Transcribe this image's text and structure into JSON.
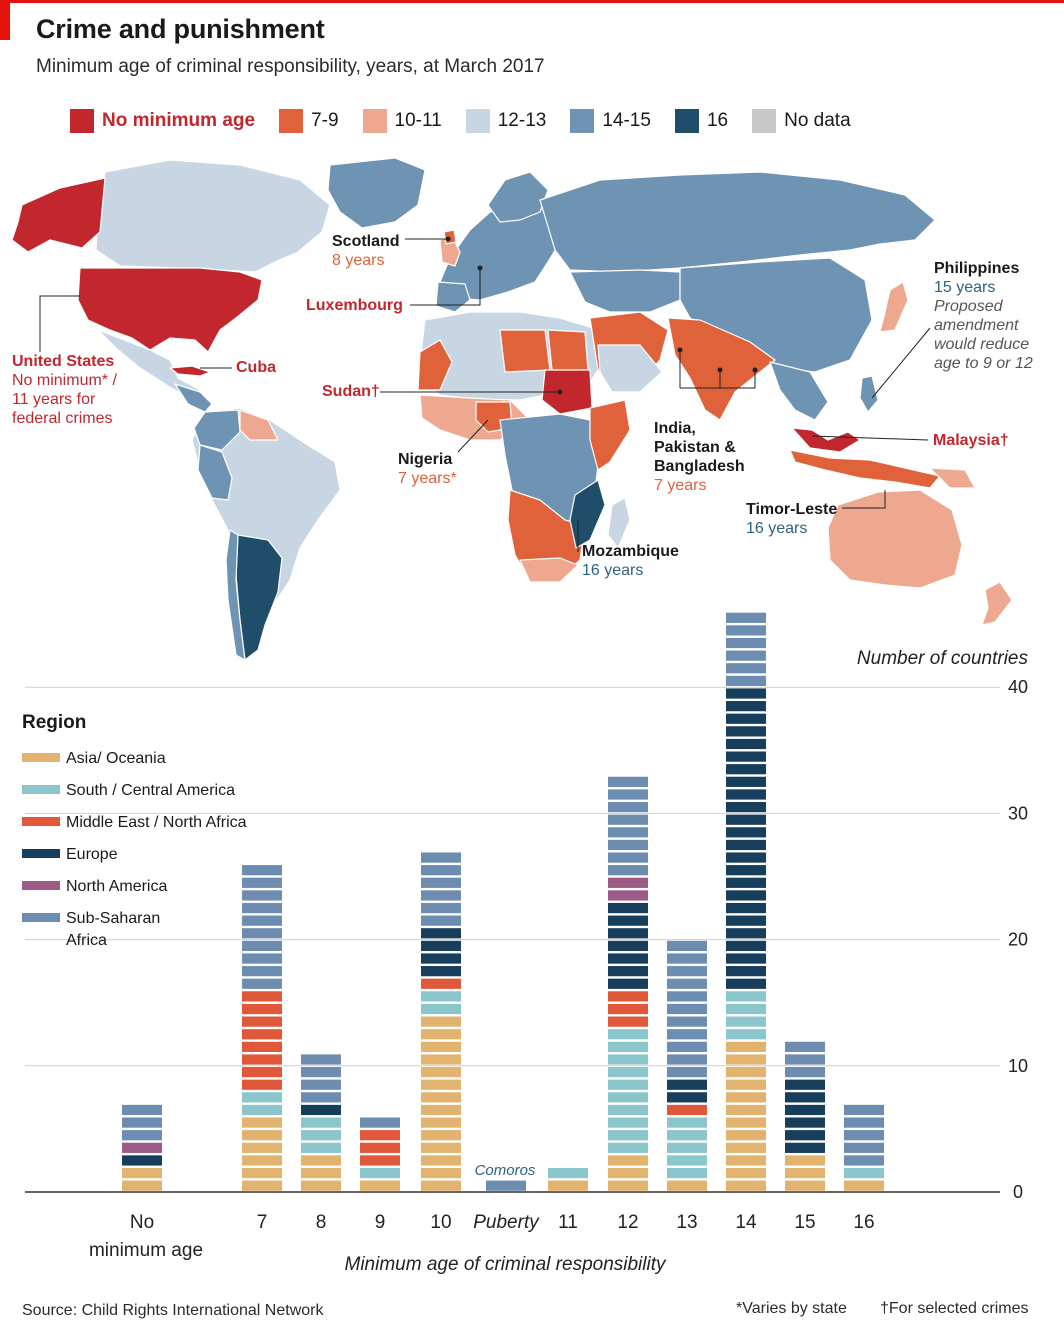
{
  "header": {
    "title": "Crime and punishment",
    "subtitle": "Minimum age of criminal responsibility, years, at March 2017"
  },
  "map_legend": [
    {
      "label": "No minimum age",
      "color": "#c1272d"
    },
    {
      "label": "7-9",
      "color": "#e0623a"
    },
    {
      "label": "10-11",
      "color": "#eda88f"
    },
    {
      "label": "12-13",
      "color": "#c8d6e4"
    },
    {
      "label": "14-15",
      "color": "#6f93b2"
    },
    {
      "label": "16",
      "color": "#1f4d6a"
    },
    {
      "label": "No data",
      "color": "#c8c8c8"
    }
  ],
  "map_annotations": {
    "scotland": {
      "name": "Scotland",
      "value": "8 years"
    },
    "luxembourg": {
      "name": "Luxembourg"
    },
    "united_states": {
      "name": "United States",
      "value": "No minimum* / 11 years for federal crimes"
    },
    "cuba": {
      "name": "Cuba"
    },
    "sudan": {
      "name": "Sudan†"
    },
    "nigeria": {
      "name": "Nigeria",
      "value": "7 years*"
    },
    "india": {
      "name": "India, Pakistan & Bangladesh",
      "value": "7 years"
    },
    "philippines": {
      "name": "Philippines",
      "value": "15 years",
      "note": "Proposed amendment would reduce age to 9 or 12"
    },
    "malaysia": {
      "name": "Malaysia†"
    },
    "timor_leste": {
      "name": "Timor-Leste",
      "value": "16 years"
    },
    "mozambique": {
      "name": "Mozambique",
      "value": "16 years"
    }
  },
  "region_legend": {
    "title": "Region",
    "items": [
      {
        "key": "asia",
        "label": "Asia/ Oceania",
        "color": "#e1b36e"
      },
      {
        "key": "scam",
        "label": "South / Central America",
        "color": "#8cc6cd"
      },
      {
        "key": "mena",
        "label": "Middle East / North Africa",
        "color": "#e0583a"
      },
      {
        "key": "europe",
        "label": "Europe",
        "color": "#173f5c"
      },
      {
        "key": "na",
        "label": "North America",
        "color": "#9c5a86"
      },
      {
        "key": "ssa",
        "label": "Sub-Saharan Africa",
        "color": "#6c8daf"
      }
    ]
  },
  "chart_data": {
    "type": "bar",
    "stacked": true,
    "categories": [
      "No minimum age",
      "7",
      "8",
      "9",
      "10",
      "Puberty",
      "11",
      "12",
      "13",
      "14",
      "15",
      "16"
    ],
    "series": [
      {
        "name": "Asia/ Oceania",
        "values": [
          2,
          6,
          3,
          1,
          14,
          0,
          1,
          3,
          1,
          12,
          3,
          1
        ]
      },
      {
        "name": "South / Central America",
        "values": [
          0,
          2,
          3,
          1,
          2,
          0,
          1,
          10,
          5,
          4,
          0,
          1
        ]
      },
      {
        "name": "Middle East / North Africa",
        "values": [
          0,
          8,
          0,
          3,
          1,
          0,
          0,
          3,
          1,
          0,
          0,
          0
        ]
      },
      {
        "name": "Europe",
        "values": [
          1,
          0,
          1,
          0,
          4,
          0,
          0,
          7,
          2,
          24,
          6,
          0
        ]
      },
      {
        "name": "North America",
        "values": [
          1,
          0,
          0,
          0,
          0,
          0,
          0,
          2,
          0,
          0,
          0,
          0
        ]
      },
      {
        "name": "Sub-Saharan Africa",
        "values": [
          3,
          10,
          4,
          1,
          6,
          1,
          0,
          8,
          11,
          6,
          3,
          5
        ]
      }
    ],
    "ylim": [
      0,
      45
    ],
    "yticks": [
      0,
      10,
      20,
      30,
      40
    ],
    "ylabel": "Number of countries",
    "xlabel": "Minimum age of criminal responsibility",
    "xlabels": [
      "No",
      "7",
      "8",
      "9",
      "10",
      "Puberty",
      "11",
      "12",
      "13",
      "14",
      "15",
      "16"
    ],
    "xlabel_no_min_line2": "minimum age",
    "annotation": "Comoros"
  },
  "footer": {
    "source": "Source: Child Rights International Network",
    "note1": "*Varies by state",
    "note2": "†For selected crimes"
  }
}
